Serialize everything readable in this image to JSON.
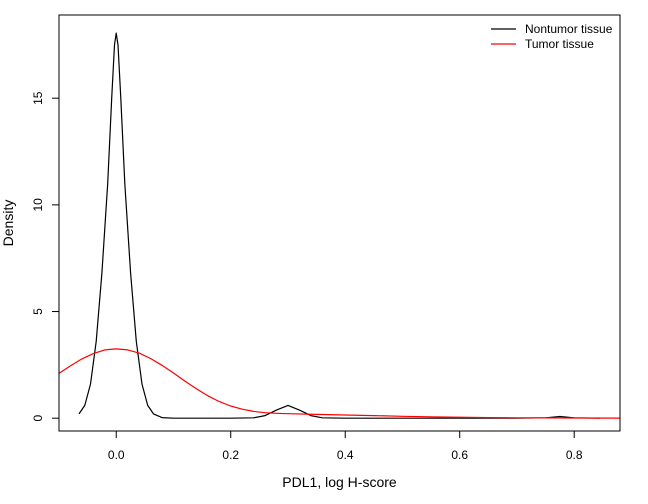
{
  "chart_data": {
    "type": "line",
    "title": "",
    "xlabel": "PDL1, log H-score",
    "ylabel": "Density",
    "xlim": [
      -0.1,
      0.88
    ],
    "ylim": [
      -0.6,
      18.9
    ],
    "x_ticks": [
      0.0,
      0.2,
      0.4,
      0.6,
      0.8
    ],
    "x_tick_labels": [
      "0.0",
      "0.2",
      "0.4",
      "0.6",
      "0.8"
    ],
    "y_ticks": [
      0,
      5,
      10,
      15
    ],
    "y_tick_labels": [
      "0",
      "5",
      "10",
      "15"
    ],
    "grid": false,
    "legend_position": "top-right",
    "series": [
      {
        "name": "Nontumor tissue",
        "color": "#000000",
        "points": [
          [
            -0.065,
            0.2
          ],
          [
            -0.055,
            0.6
          ],
          [
            -0.045,
            1.6
          ],
          [
            -0.035,
            3.6
          ],
          [
            -0.025,
            6.8
          ],
          [
            -0.015,
            11.0
          ],
          [
            -0.008,
            15.0
          ],
          [
            -0.003,
            17.5
          ],
          [
            0.0,
            18.05
          ],
          [
            0.003,
            17.5
          ],
          [
            0.008,
            15.0
          ],
          [
            0.015,
            11.0
          ],
          [
            0.025,
            6.8
          ],
          [
            0.035,
            3.6
          ],
          [
            0.045,
            1.6
          ],
          [
            0.055,
            0.6
          ],
          [
            0.065,
            0.2
          ],
          [
            0.08,
            0.03
          ],
          [
            0.1,
            0.0
          ],
          [
            0.2,
            0.0
          ],
          [
            0.24,
            0.02
          ],
          [
            0.26,
            0.12
          ],
          [
            0.28,
            0.38
          ],
          [
            0.3,
            0.6
          ],
          [
            0.32,
            0.38
          ],
          [
            0.34,
            0.12
          ],
          [
            0.36,
            0.02
          ],
          [
            0.4,
            0.0
          ],
          [
            0.5,
            0.0
          ],
          [
            0.6,
            0.0
          ],
          [
            0.7,
            0.0
          ],
          [
            0.75,
            0.02
          ],
          [
            0.775,
            0.08
          ],
          [
            0.8,
            0.02
          ],
          [
            0.845,
            0.0
          ]
        ]
      },
      {
        "name": "Tumor tissue",
        "color": "#ff0000",
        "points": [
          [
            -0.1,
            2.1
          ],
          [
            -0.08,
            2.45
          ],
          [
            -0.06,
            2.78
          ],
          [
            -0.04,
            3.03
          ],
          [
            -0.02,
            3.2
          ],
          [
            0.0,
            3.25
          ],
          [
            0.02,
            3.2
          ],
          [
            0.04,
            3.05
          ],
          [
            0.06,
            2.8
          ],
          [
            0.08,
            2.48
          ],
          [
            0.1,
            2.12
          ],
          [
            0.12,
            1.74
          ],
          [
            0.14,
            1.38
          ],
          [
            0.16,
            1.05
          ],
          [
            0.18,
            0.78
          ],
          [
            0.2,
            0.57
          ],
          [
            0.22,
            0.42
          ],
          [
            0.24,
            0.32
          ],
          [
            0.26,
            0.26
          ],
          [
            0.28,
            0.23
          ],
          [
            0.3,
            0.21
          ],
          [
            0.35,
            0.18
          ],
          [
            0.4,
            0.15
          ],
          [
            0.45,
            0.12
          ],
          [
            0.5,
            0.09
          ],
          [
            0.55,
            0.065
          ],
          [
            0.6,
            0.045
          ],
          [
            0.65,
            0.03
          ],
          [
            0.7,
            0.02
          ],
          [
            0.75,
            0.015
          ],
          [
            0.8,
            0.01
          ],
          [
            0.88,
            0.005
          ]
        ]
      }
    ]
  }
}
